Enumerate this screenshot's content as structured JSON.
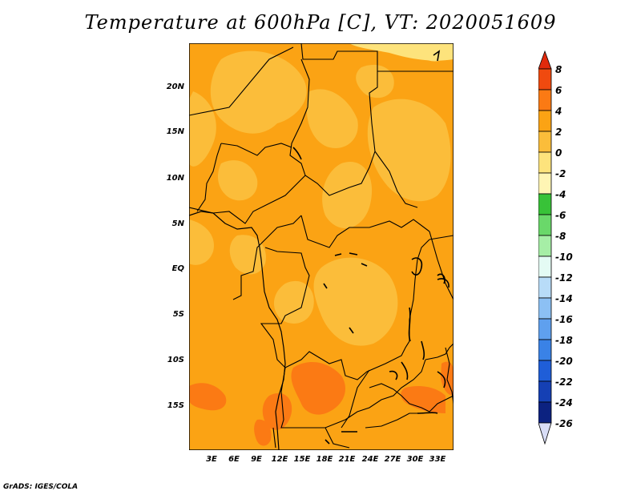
{
  "title": "Temperature at 600hPa [C], VT: 2020051609",
  "credit": "GrADS: IGES/COLA",
  "map": {
    "lat_ticks": [
      "20N",
      "15N",
      "10N",
      "5N",
      "EQ",
      "5S",
      "10S",
      "15S"
    ],
    "lon_ticks": [
      "3E",
      "6E",
      "9E",
      "12E",
      "15E",
      "18E",
      "21E",
      "24E",
      "27E",
      "30E",
      "33E"
    ]
  },
  "colorbar": {
    "labels": [
      "8",
      "6",
      "4",
      "2",
      "0",
      "-2",
      "-4",
      "-6",
      "-8",
      "-10",
      "-12",
      "-14",
      "-16",
      "-18",
      "-20",
      "-22",
      "-24",
      "-26"
    ],
    "colors": {
      "over": "#e22a0c",
      "c_8_6": "#f04a0f",
      "c_6_4": "#fb7a14",
      "c_4_2": "#fba314",
      "c_2_0": "#fbbd3a",
      "c_0_m2": "#fde37c",
      "c_m2_m4": "#fff5b4",
      "c_m4_m6": "#38c238",
      "c_m6_m8": "#6ad86a",
      "c_m8_m10": "#a6eea6",
      "c_m10_m12": "#e4fbf4",
      "c_m12_m14": "#b8dcf8",
      "c_m14_m16": "#8cc0f4",
      "c_m16_m18": "#5fa0ee",
      "c_m18_m20": "#3a82e6",
      "c_m20_m22": "#1f5ed8",
      "c_m22_m24": "#1540b4",
      "c_m24_m26": "#0c2280",
      "under": "#d8ddf6"
    }
  }
}
